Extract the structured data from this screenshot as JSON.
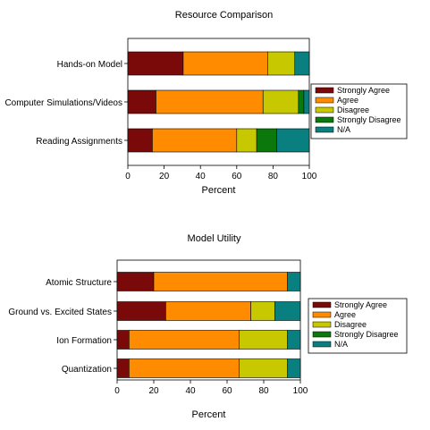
{
  "colors": {
    "Strongly Agree": "#7a0a0a",
    "Agree": "#ff8c00",
    "Disagree": "#c8c800",
    "Strongly Disagree": "#0a780a",
    "N/A": "#0a7f7f"
  },
  "chart_data": [
    {
      "type": "bar",
      "orientation": "horizontal",
      "stacked": true,
      "title": "Resource Comparison",
      "xlabel": "Percent",
      "ylabel": "",
      "xlim": [
        0,
        100
      ],
      "xticks": [
        "0",
        "20",
        "40",
        "60",
        "80",
        "100"
      ],
      "categories": [
        "Hands-on Model",
        "Computer Simulations/Videos",
        "Reading Assignments"
      ],
      "series": [
        {
          "name": "Strongly Agree",
          "values": [
            30.5,
            15.5,
            13.5
          ]
        },
        {
          "name": "Agree",
          "values": [
            46.5,
            59,
            46.5
          ]
        },
        {
          "name": "Disagree",
          "values": [
            15,
            19.5,
            11
          ]
        },
        {
          "name": "Strongly Disagree",
          "values": [
            0,
            3,
            11
          ]
        },
        {
          "name": "N/A",
          "values": [
            8,
            3,
            18
          ]
        }
      ],
      "legend": "right"
    },
    {
      "type": "bar",
      "orientation": "horizontal",
      "stacked": true,
      "title": "Model Utility",
      "xlabel": "Percent",
      "ylabel": "",
      "xlim": [
        0,
        100
      ],
      "xticks": [
        "0",
        "20",
        "40",
        "60",
        "80",
        "100"
      ],
      "categories": [
        "Atomic Structure",
        "Ground vs. Excited States",
        "Ion Formation",
        "Quantization"
      ],
      "series": [
        {
          "name": "Strongly Agree",
          "values": [
            20,
            26.5,
            6.5,
            6.5
          ]
        },
        {
          "name": "Agree",
          "values": [
            73,
            46.5,
            60,
            60
          ]
        },
        {
          "name": "Disagree",
          "values": [
            0,
            13,
            26.5,
            26.5
          ]
        },
        {
          "name": "Strongly Disagree",
          "values": [
            0,
            0,
            0,
            0
          ]
        },
        {
          "name": "N/A",
          "values": [
            7,
            14,
            7,
            7
          ]
        }
      ],
      "legend": "right"
    }
  ]
}
